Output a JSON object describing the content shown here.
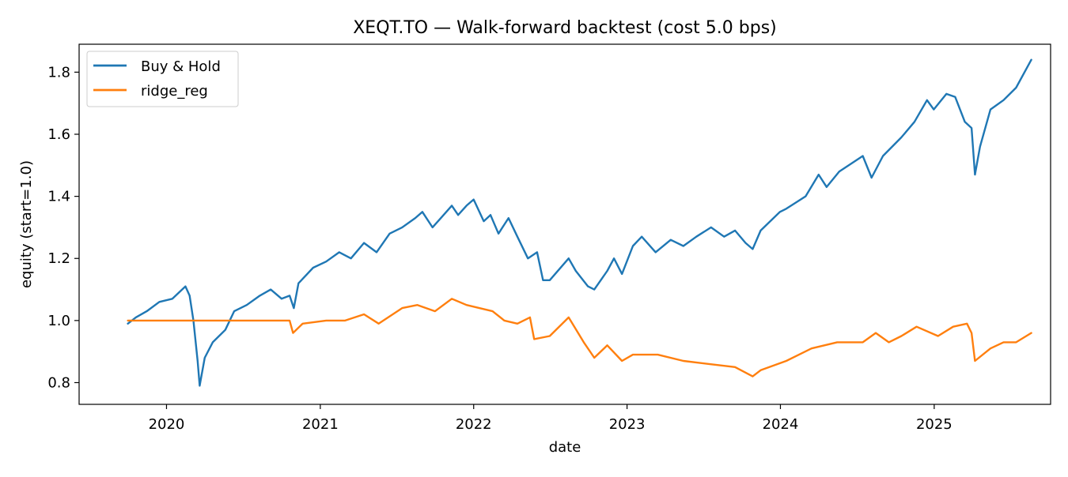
{
  "chart_data": {
    "type": "line",
    "title": "XEQT.TO — Walk-forward backtest (cost 5.0 bps)",
    "xlabel": "date",
    "ylabel": "equity (start=1.0)",
    "xlim": [
      "2019-06-07",
      "2025-10-05"
    ],
    "ylim": [
      0.73,
      1.89
    ],
    "x_ticks": [
      "2020",
      "2021",
      "2022",
      "2023",
      "2024",
      "2025"
    ],
    "x_tick_dates": [
      "2020-01-01",
      "2021-01-01",
      "2022-01-01",
      "2023-01-01",
      "2024-01-01",
      "2025-01-01"
    ],
    "y_ticks": [
      0.8,
      1.0,
      1.2,
      1.4,
      1.6,
      1.8
    ],
    "y_tick_labels": [
      "0.8",
      "1.0",
      "1.2",
      "1.4",
      "1.6",
      "1.8"
    ],
    "grid": false,
    "legend_position": "top-left",
    "series": [
      {
        "name": "Buy & Hold",
        "color": "#1f77b4",
        "points": [
          [
            "2019-10-01",
            0.99
          ],
          [
            "2019-10-20",
            1.01
          ],
          [
            "2019-11-15",
            1.03
          ],
          [
            "2019-12-15",
            1.06
          ],
          [
            "2020-01-15",
            1.07
          ],
          [
            "2020-02-15",
            1.11
          ],
          [
            "2020-02-25",
            1.08
          ],
          [
            "2020-03-05",
            1.0
          ],
          [
            "2020-03-15",
            0.87
          ],
          [
            "2020-03-20",
            0.79
          ],
          [
            "2020-04-01",
            0.88
          ],
          [
            "2020-04-20",
            0.93
          ],
          [
            "2020-05-20",
            0.97
          ],
          [
            "2020-06-10",
            1.03
          ],
          [
            "2020-07-10",
            1.05
          ],
          [
            "2020-08-10",
            1.08
          ],
          [
            "2020-09-05",
            1.1
          ],
          [
            "2020-10-01",
            1.07
          ],
          [
            "2020-10-20",
            1.08
          ],
          [
            "2020-10-30",
            1.04
          ],
          [
            "2020-11-10",
            1.12
          ],
          [
            "2020-12-15",
            1.17
          ],
          [
            "2021-01-15",
            1.19
          ],
          [
            "2021-02-15",
            1.22
          ],
          [
            "2021-03-15",
            1.2
          ],
          [
            "2021-04-15",
            1.25
          ],
          [
            "2021-05-15",
            1.22
          ],
          [
            "2021-06-15",
            1.28
          ],
          [
            "2021-07-15",
            1.3
          ],
          [
            "2021-08-15",
            1.33
          ],
          [
            "2021-09-01",
            1.35
          ],
          [
            "2021-09-25",
            1.3
          ],
          [
            "2021-10-15",
            1.33
          ],
          [
            "2021-11-10",
            1.37
          ],
          [
            "2021-11-25",
            1.34
          ],
          [
            "2021-12-15",
            1.37
          ],
          [
            "2022-01-01",
            1.39
          ],
          [
            "2022-01-25",
            1.32
          ],
          [
            "2022-02-10",
            1.34
          ],
          [
            "2022-03-01",
            1.28
          ],
          [
            "2022-03-25",
            1.33
          ],
          [
            "2022-04-15",
            1.27
          ],
          [
            "2022-05-10",
            1.2
          ],
          [
            "2022-06-01",
            1.22
          ],
          [
            "2022-06-15",
            1.13
          ],
          [
            "2022-07-01",
            1.13
          ],
          [
            "2022-08-15",
            1.2
          ],
          [
            "2022-09-01",
            1.16
          ],
          [
            "2022-09-30",
            1.11
          ],
          [
            "2022-10-15",
            1.1
          ],
          [
            "2022-11-15",
            1.16
          ],
          [
            "2022-12-01",
            1.2
          ],
          [
            "2022-12-20",
            1.15
          ],
          [
            "2023-01-15",
            1.24
          ],
          [
            "2023-02-05",
            1.27
          ],
          [
            "2023-03-10",
            1.22
          ],
          [
            "2023-04-15",
            1.26
          ],
          [
            "2023-05-15",
            1.24
          ],
          [
            "2023-06-15",
            1.27
          ],
          [
            "2023-07-20",
            1.3
          ],
          [
            "2023-08-20",
            1.27
          ],
          [
            "2023-09-15",
            1.29
          ],
          [
            "2023-10-10",
            1.25
          ],
          [
            "2023-10-27",
            1.23
          ],
          [
            "2023-11-15",
            1.29
          ],
          [
            "2023-12-31",
            1.35
          ],
          [
            "2024-01-15",
            1.36
          ],
          [
            "2024-03-01",
            1.4
          ],
          [
            "2024-04-01",
            1.47
          ],
          [
            "2024-04-20",
            1.43
          ],
          [
            "2024-05-20",
            1.48
          ],
          [
            "2024-07-15",
            1.53
          ],
          [
            "2024-08-05",
            1.46
          ],
          [
            "2024-09-01",
            1.53
          ],
          [
            "2024-10-15",
            1.59
          ],
          [
            "2024-11-15",
            1.64
          ],
          [
            "2024-12-15",
            1.71
          ],
          [
            "2024-12-31",
            1.68
          ],
          [
            "2025-01-30",
            1.73
          ],
          [
            "2025-02-20",
            1.72
          ],
          [
            "2025-03-15",
            1.64
          ],
          [
            "2025-03-31",
            1.62
          ],
          [
            "2025-04-08",
            1.47
          ],
          [
            "2025-04-20",
            1.56
          ],
          [
            "2025-05-15",
            1.68
          ],
          [
            "2025-06-15",
            1.71
          ],
          [
            "2025-07-15",
            1.75
          ],
          [
            "2025-08-20",
            1.84
          ]
        ]
      },
      {
        "name": "ridge_reg",
        "color": "#ff7f0e",
        "points": [
          [
            "2019-10-01",
            1.0
          ],
          [
            "2020-10-20",
            1.0
          ],
          [
            "2020-10-28",
            0.96
          ],
          [
            "2020-11-20",
            0.99
          ],
          [
            "2021-01-15",
            1.0
          ],
          [
            "2021-03-01",
            1.0
          ],
          [
            "2021-04-15",
            1.02
          ],
          [
            "2021-05-20",
            0.99
          ],
          [
            "2021-07-15",
            1.04
          ],
          [
            "2021-08-20",
            1.05
          ],
          [
            "2021-10-01",
            1.03
          ],
          [
            "2021-11-10",
            1.07
          ],
          [
            "2021-12-15",
            1.05
          ],
          [
            "2022-02-15",
            1.03
          ],
          [
            "2022-03-15",
            1.0
          ],
          [
            "2022-04-15",
            0.99
          ],
          [
            "2022-05-15",
            1.01
          ],
          [
            "2022-05-25",
            0.94
          ],
          [
            "2022-07-01",
            0.95
          ],
          [
            "2022-08-15",
            1.01
          ],
          [
            "2022-09-20",
            0.93
          ],
          [
            "2022-10-15",
            0.88
          ],
          [
            "2022-11-15",
            0.92
          ],
          [
            "2022-12-20",
            0.87
          ],
          [
            "2023-01-15",
            0.89
          ],
          [
            "2023-03-15",
            0.89
          ],
          [
            "2023-05-15",
            0.87
          ],
          [
            "2023-07-15",
            0.86
          ],
          [
            "2023-09-15",
            0.85
          ],
          [
            "2023-10-27",
            0.82
          ],
          [
            "2023-11-15",
            0.84
          ],
          [
            "2024-01-15",
            0.87
          ],
          [
            "2024-03-15",
            0.91
          ],
          [
            "2024-05-15",
            0.93
          ],
          [
            "2024-07-15",
            0.93
          ],
          [
            "2024-08-15",
            0.96
          ],
          [
            "2024-09-15",
            0.93
          ],
          [
            "2024-10-15",
            0.95
          ],
          [
            "2024-11-20",
            0.98
          ],
          [
            "2025-01-10",
            0.95
          ],
          [
            "2025-02-15",
            0.98
          ],
          [
            "2025-03-20",
            0.99
          ],
          [
            "2025-03-31",
            0.96
          ],
          [
            "2025-04-08",
            0.87
          ],
          [
            "2025-05-15",
            0.91
          ],
          [
            "2025-06-15",
            0.93
          ],
          [
            "2025-07-15",
            0.93
          ],
          [
            "2025-08-20",
            0.96
          ]
        ]
      }
    ]
  }
}
